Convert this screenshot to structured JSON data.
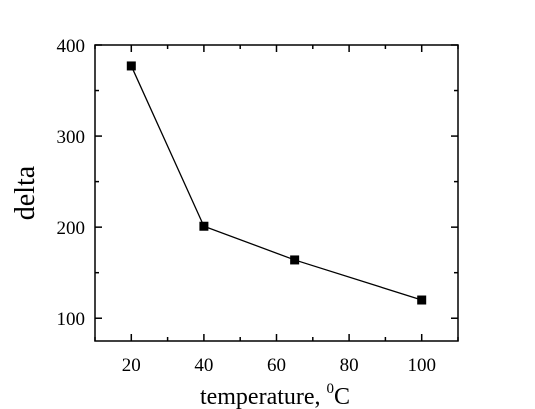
{
  "chart_data": {
    "type": "line",
    "title": "",
    "xlabel": "temperature,",
    "xlabel_superscript": "0",
    "xlabel_unit": "C",
    "ylabel": "delta",
    "xlim": [
      10,
      110
    ],
    "ylim": [
      75,
      400
    ],
    "x_ticks": [
      20,
      40,
      60,
      80,
      100
    ],
    "y_ticks": [
      100,
      200,
      300,
      400
    ],
    "grid": false,
    "legend": "none",
    "series": [
      {
        "x": [
          20,
          40,
          65,
          100
        ],
        "y": [
          377,
          201,
          164,
          120
        ],
        "marker": "square",
        "color": "#000000"
      }
    ]
  }
}
